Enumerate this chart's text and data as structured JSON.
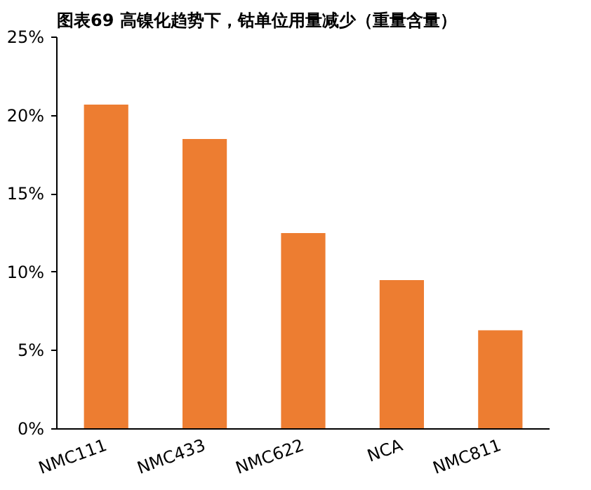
{
  "chart_data": {
    "type": "bar",
    "title": "图表69    高镍化趋势下，钴单位用量减少（重量含量）",
    "categories": [
      "NMC111",
      "NMC433",
      "NMC622",
      "NCA",
      "NMC811"
    ],
    "values": [
      20.7,
      18.5,
      12.5,
      9.5,
      6.3
    ],
    "color": "#ed7d31",
    "ylim": [
      0,
      25
    ],
    "yticks": [
      {
        "value": 0,
        "label": "0%"
      },
      {
        "value": 5,
        "label": "5%"
      },
      {
        "value": 10,
        "label": "10%"
      },
      {
        "value": 15,
        "label": "15%"
      },
      {
        "value": 20,
        "label": "20%"
      },
      {
        "value": 25,
        "label": "25%"
      }
    ],
    "grid": false
  }
}
